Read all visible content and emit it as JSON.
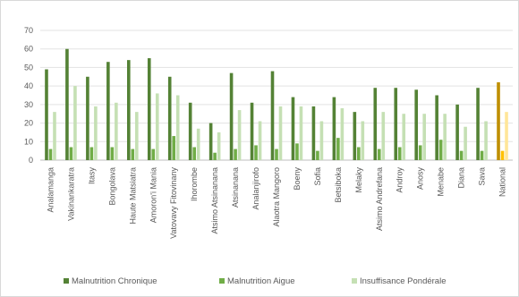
{
  "chart_data": {
    "type": "bar",
    "title": "",
    "xlabel": "",
    "ylabel": "",
    "ylim": [
      0,
      70
    ],
    "yticks": [
      0,
      10,
      20,
      30,
      40,
      50,
      60,
      70
    ],
    "grid": true,
    "legend_position": "bottom",
    "categories": [
      "Analamanga",
      "Vakinankaratra",
      "Itasy",
      "Bongolava",
      "Haute Matsiatra",
      "Amoron'i Mania",
      "Vatovavy Fitovinany",
      "Ihorombe",
      "Atsimo Atsinanana",
      "Atsinanana",
      "Analanjirofo",
      "Alaotra Mangoro",
      "Boeny",
      "Sofia",
      "Betsiboka",
      "Melaky",
      "Atsimo Andrefana",
      "Androy",
      "Anosy",
      "Menabe",
      "Diana",
      "Sava",
      "National"
    ],
    "series": [
      {
        "name": "Malnutrition Chronique",
        "color": "#548235",
        "highlight_color": "#bf8f00",
        "values": [
          49,
          60,
          45,
          53,
          54,
          55,
          45,
          31,
          20,
          47,
          31,
          48,
          34,
          29,
          34,
          26,
          39,
          39,
          38,
          35,
          30,
          39,
          42
        ]
      },
      {
        "name": "Malnutrition Aigue",
        "color": "#70ad47",
        "highlight_color": "#ffc000",
        "values": [
          6,
          7,
          7,
          7,
          6,
          6,
          13,
          7,
          4,
          6,
          8,
          6,
          9,
          5,
          12,
          7,
          6,
          7,
          8,
          11,
          5,
          5,
          5
        ]
      },
      {
        "name": "Insuffisance Pondérale",
        "color": "#c5e0b4",
        "highlight_color": "#ffe699",
        "values": [
          26,
          40,
          29,
          31,
          26,
          36,
          35,
          17,
          15,
          27,
          21,
          29,
          29,
          21,
          28,
          21,
          26,
          25,
          25,
          25,
          18,
          21,
          26
        ]
      }
    ]
  }
}
